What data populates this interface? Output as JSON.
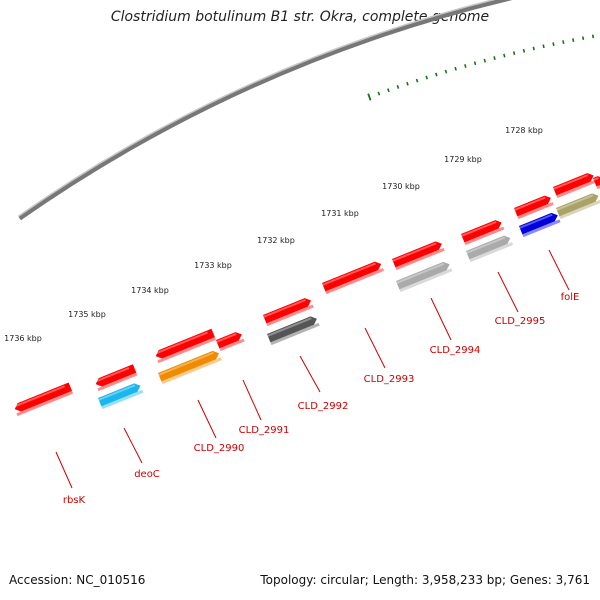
{
  "title": "Clostridium botulinum B1 str. Okra, complete genome",
  "accession": "Accession: NC_010516",
  "summary": "Topology: circular; Length: 3,958,233 bp; Genes: 3,761",
  "scale": [
    {
      "label": "1728 kbp"
    },
    {
      "label": "1729 kbp"
    },
    {
      "label": "1730 kbp"
    },
    {
      "label": "1731 kbp"
    },
    {
      "label": "1732 kbp"
    },
    {
      "label": "1733 kbp"
    },
    {
      "label": "1734 kbp"
    },
    {
      "label": "1735 kbp"
    },
    {
      "label": "1736 kbp"
    }
  ],
  "gene_labels": [
    {
      "label": "folE"
    },
    {
      "label": "CLD_2995"
    },
    {
      "label": "CLD_2994"
    },
    {
      "label": "CLD_2993"
    },
    {
      "label": "CLD_2992"
    },
    {
      "label": "CLD_2991"
    },
    {
      "label": "CLD_2990"
    },
    {
      "label": "deoC"
    },
    {
      "label": "rbsK"
    }
  ],
  "colors": {
    "backbone": "#777777",
    "tick": "#117711",
    "gene_red": "#ff0000",
    "gene_label": "#cc0000",
    "deoC": "#1ab6ee",
    "CLD_2990": "#f08a00",
    "CLD_2992": "#555555",
    "CLD_2994": "#aaaaaa",
    "CLD_2995": "#aaaaaa",
    "folE": "#0000dd",
    "olive": "#aaa266"
  }
}
